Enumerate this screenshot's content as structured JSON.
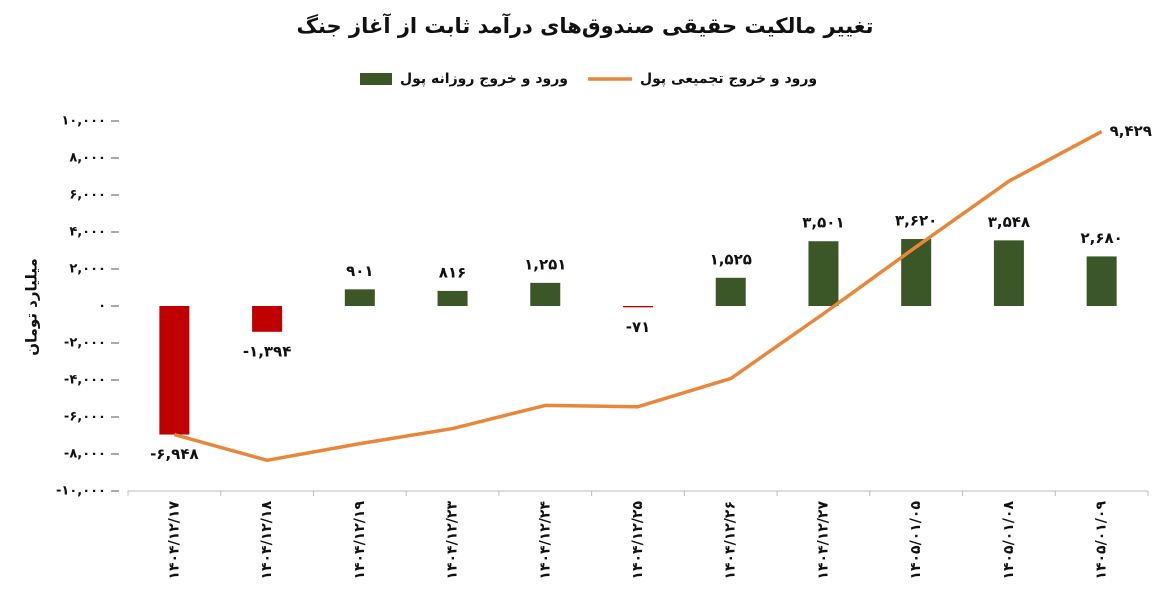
{
  "chart_data": {
    "type": "combo",
    "title": "تغییر مالکیت حقیقی صندوق‌های درآمد ثابت از آغاز جنگ",
    "y_label": "میلیارد تومان",
    "categories": [
      "۱۴۰۴/۱۲/۱۷",
      "۱۴۰۴/۱۲/۱۸",
      "۱۴۰۴/۱۲/۱۹",
      "۱۴۰۴/۱۲/۲۳",
      "۱۴۰۴/۱۲/۲۴",
      "۱۴۰۴/۱۲/۲۵",
      "۱۴۰۴/۱۲/۲۶",
      "۱۴۰۴/۱۲/۲۷",
      "۱۴۰۵/۰۱/۰۵",
      "۱۴۰۵/۰۱/۰۸",
      "۱۴۰۵/۰۱/۰۹"
    ],
    "series": [
      {
        "name": "ورود و خروج روزانه پول",
        "type": "bar",
        "color": "#3b5627",
        "negative_color": "#c00000",
        "values": [
          -6948,
          -1394,
          901,
          816,
          1251,
          -71,
          1525,
          3501,
          3620,
          3548,
          2680
        ],
        "value_labels": [
          "-۶,۹۴۸",
          "-۱,۳۹۴",
          "۹۰۱",
          "۸۱۶",
          "۱,۲۵۱",
          "-۷۱",
          "۱,۵۲۵",
          "۳,۵۰۱",
          "۳,۶۲۰",
          "۳,۵۴۸",
          "۲,۶۸۰"
        ]
      },
      {
        "name": "ورود و خروج تجمیعی پول",
        "type": "line",
        "color": "#e8873a",
        "values": [
          -6948,
          -8342,
          -7441,
          -6625,
          -5374,
          -5445,
          -3920,
          -419,
          3201,
          6749,
          9429
        ],
        "value_labels": [
          null,
          null,
          null,
          null,
          null,
          null,
          null,
          null,
          null,
          null,
          "۹,۴۲۹"
        ]
      }
    ],
    "ylim": [
      -10000,
      10000
    ],
    "yticks": [
      {
        "value": -10000,
        "label": "-۱۰,۰۰۰"
      },
      {
        "value": -8000,
        "label": "-۸,۰۰۰"
      },
      {
        "value": -6000,
        "label": "-۶,۰۰۰"
      },
      {
        "value": -4000,
        "label": "-۴,۰۰۰"
      },
      {
        "value": -2000,
        "label": "-۲,۰۰۰"
      },
      {
        "value": 0,
        "label": "۰"
      },
      {
        "value": 2000,
        "label": "۲,۰۰۰"
      },
      {
        "value": 4000,
        "label": "۴,۰۰۰"
      },
      {
        "value": 6000,
        "label": "۶,۰۰۰"
      },
      {
        "value": 8000,
        "label": "۸,۰۰۰"
      },
      {
        "value": 10000,
        "label": "۱۰,۰۰۰"
      }
    ],
    "grid": false
  }
}
